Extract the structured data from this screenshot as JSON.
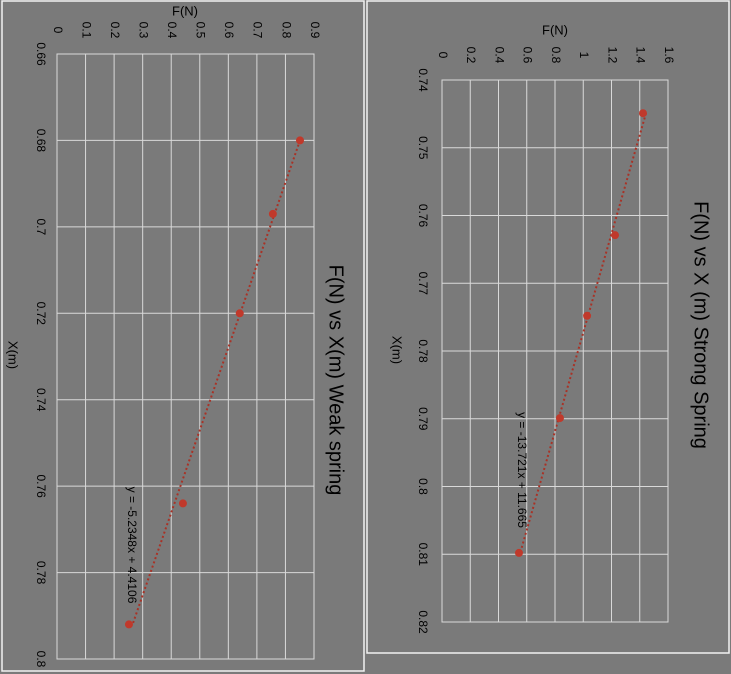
{
  "chart_data": [
    {
      "type": "scatter",
      "title": "F(N) vs X(m) Weak spring",
      "x_label": "X(m)",
      "y_label": "F(N)",
      "x": [
        0.68,
        0.697,
        0.72,
        0.764,
        0.792
      ],
      "values": [
        0.851,
        0.756,
        0.64,
        0.441,
        0.252
      ],
      "color": "#c0392b",
      "trendline": {
        "label": "y = -5.2348x + 4.4106",
        "slope": -5.2348,
        "intercept": 4.4106
      },
      "xlim": [
        0.66,
        0.8
      ],
      "xticks": [
        0.66,
        0.68,
        0.7,
        0.72,
        0.74,
        0.76,
        0.78,
        0.8
      ],
      "ylim": [
        0,
        0.9
      ],
      "yticks": [
        0,
        0.1,
        0.2,
        0.3,
        0.4,
        0.5,
        0.6,
        0.7,
        0.8,
        0.9
      ],
      "grid": true
    },
    {
      "type": "scatter",
      "title": "F(N) vs X (m) Strong Spring",
      "x_label": "X(m)",
      "y_label": "F(N)",
      "x": [
        0.7449,
        0.7629,
        0.7748,
        0.7899,
        0.8098
      ],
      "values": [
        1.423,
        1.225,
        1.027,
        0.835,
        0.545
      ],
      "color": "#c0392b",
      "trendline": {
        "label": "y = -13.721x + 11.665",
        "slope": -13.721,
        "intercept": 11.665
      },
      "xlim": [
        0.74,
        0.82
      ],
      "xticks": [
        0.74,
        0.75,
        0.76,
        0.77,
        0.78,
        0.79,
        0.8,
        0.81,
        0.82
      ],
      "ylim": [
        0,
        1.6
      ],
      "yticks": [
        0,
        0.2,
        0.4,
        0.6,
        0.8,
        1,
        1.2,
        1.4,
        1.6
      ],
      "grid": true
    }
  ]
}
